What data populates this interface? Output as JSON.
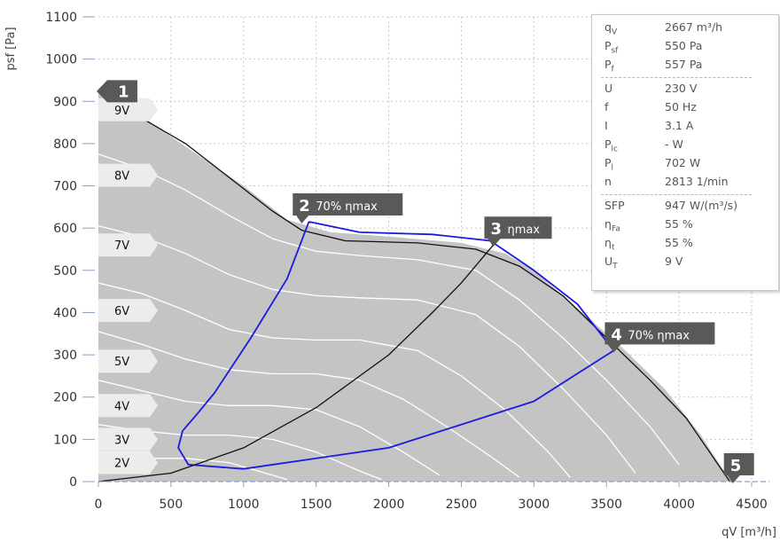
{
  "chart_data": {
    "type": "line",
    "xlabel": "qV [m³/h]",
    "ylabel": "psf [Pa]",
    "xlim": [
      0,
      4500
    ],
    "ylim": [
      0,
      1100
    ],
    "x_ticks": [
      0,
      500,
      1000,
      1500,
      2000,
      2500,
      3000,
      3500,
      4000,
      4500
    ],
    "y_ticks": [
      0,
      100,
      200,
      300,
      400,
      500,
      600,
      700,
      800,
      900,
      1000,
      1100
    ],
    "grid": true,
    "envelope": [
      [
        0,
        920
      ],
      [
        200,
        890
      ],
      [
        400,
        840
      ],
      [
        700,
        770
      ],
      [
        1000,
        700
      ],
      [
        1300,
        620
      ],
      [
        1600,
        590
      ],
      [
        2000,
        580
      ],
      [
        2500,
        565
      ],
      [
        2800,
        540
      ],
      [
        3000,
        500
      ],
      [
        3300,
        410
      ],
      [
        3600,
        320
      ],
      [
        3900,
        220
      ],
      [
        4150,
        110
      ],
      [
        4300,
        30
      ],
      [
        4400,
        0
      ],
      [
        0,
        0
      ]
    ],
    "series": [
      {
        "name": "9V",
        "color": "#111111",
        "points": [
          [
            0,
            895
          ],
          [
            300,
            860
          ],
          [
            600,
            800
          ],
          [
            900,
            720
          ],
          [
            1200,
            640
          ],
          [
            1400,
            595
          ],
          [
            1700,
            570
          ],
          [
            2200,
            565
          ],
          [
            2600,
            550
          ],
          [
            2900,
            510
          ],
          [
            3200,
            440
          ],
          [
            3500,
            340
          ],
          [
            3800,
            240
          ],
          [
            4050,
            150
          ],
          [
            4250,
            50
          ],
          [
            4350,
            0
          ]
        ]
      },
      {
        "name": "8V",
        "color": "#ffffff",
        "points": [
          [
            0,
            775
          ],
          [
            300,
            740
          ],
          [
            600,
            690
          ],
          [
            900,
            630
          ],
          [
            1200,
            575
          ],
          [
            1500,
            545
          ],
          [
            1800,
            535
          ],
          [
            2200,
            525
          ],
          [
            2600,
            500
          ],
          [
            2900,
            430
          ],
          [
            3200,
            340
          ],
          [
            3500,
            240
          ],
          [
            3800,
            130
          ],
          [
            4000,
            40
          ]
        ]
      },
      {
        "name": "7V",
        "color": "#ffffff",
        "points": [
          [
            0,
            605
          ],
          [
            300,
            580
          ],
          [
            600,
            540
          ],
          [
            900,
            490
          ],
          [
            1200,
            455
          ],
          [
            1500,
            440
          ],
          [
            1800,
            435
          ],
          [
            2200,
            430
          ],
          [
            2600,
            395
          ],
          [
            2900,
            320
          ],
          [
            3200,
            220
          ],
          [
            3500,
            110
          ],
          [
            3700,
            20
          ]
        ]
      },
      {
        "name": "6V",
        "color": "#ffffff",
        "points": [
          [
            0,
            470
          ],
          [
            300,
            445
          ],
          [
            600,
            405
          ],
          [
            900,
            360
          ],
          [
            1200,
            340
          ],
          [
            1500,
            335
          ],
          [
            1800,
            335
          ],
          [
            2200,
            310
          ],
          [
            2500,
            250
          ],
          [
            2800,
            170
          ],
          [
            3100,
            70
          ],
          [
            3250,
            10
          ]
        ]
      },
      {
        "name": "5V",
        "color": "#ffffff",
        "points": [
          [
            0,
            355
          ],
          [
            300,
            325
          ],
          [
            600,
            290
          ],
          [
            900,
            265
          ],
          [
            1200,
            255
          ],
          [
            1500,
            255
          ],
          [
            1800,
            240
          ],
          [
            2100,
            195
          ],
          [
            2400,
            130
          ],
          [
            2700,
            60
          ],
          [
            2900,
            10
          ]
        ]
      },
      {
        "name": "4V",
        "color": "#ffffff",
        "points": [
          [
            0,
            240
          ],
          [
            300,
            215
          ],
          [
            600,
            190
          ],
          [
            900,
            180
          ],
          [
            1200,
            180
          ],
          [
            1500,
            170
          ],
          [
            1800,
            130
          ],
          [
            2100,
            70
          ],
          [
            2350,
            15
          ]
        ]
      },
      {
        "name": "3V",
        "color": "#ffffff",
        "points": [
          [
            0,
            135
          ],
          [
            300,
            120
          ],
          [
            600,
            110
          ],
          [
            900,
            110
          ],
          [
            1200,
            100
          ],
          [
            1500,
            70
          ],
          [
            1800,
            25
          ],
          [
            1950,
            5
          ]
        ]
      },
      {
        "name": "2V",
        "color": "#ffffff",
        "points": [
          [
            0,
            60
          ],
          [
            300,
            55
          ],
          [
            600,
            55
          ],
          [
            900,
            45
          ],
          [
            1100,
            25
          ],
          [
            1300,
            5
          ]
        ]
      },
      {
        "name": "",
        "color": "#1a1ae0",
        "points": [
          [
            1450,
            615
          ],
          [
            1300,
            480
          ],
          [
            1050,
            340
          ],
          [
            800,
            210
          ],
          [
            680,
            160
          ],
          [
            580,
            120
          ],
          [
            550,
            80
          ],
          [
            620,
            40
          ],
          [
            1000,
            30
          ],
          [
            2000,
            80
          ],
          [
            3000,
            190
          ],
          [
            3550,
            310
          ],
          [
            3300,
            420
          ],
          [
            3000,
            500
          ],
          [
            2700,
            570
          ],
          [
            2300,
            585
          ],
          [
            1800,
            590
          ],
          [
            1450,
            615
          ]
        ]
      },
      {
        "name": "",
        "color": "#111111",
        "points": [
          [
            0,
            0
          ],
          [
            500,
            20
          ],
          [
            1000,
            80
          ],
          [
            1500,
            175
          ],
          [
            2000,
            300
          ],
          [
            2300,
            400
          ],
          [
            2500,
            470
          ],
          [
            2720,
            560
          ]
        ]
      }
    ],
    "markers": [
      {
        "num": "1",
        "text": "",
        "x": 0,
        "y": 925,
        "dir": "left"
      },
      {
        "num": "2",
        "text": "70% ηmax",
        "x": 1400,
        "y": 615,
        "dir": "down"
      },
      {
        "num": "3",
        "text": "ηmax",
        "x": 2720,
        "y": 560,
        "dir": "down"
      },
      {
        "num": "4",
        "text": "70% ηmax",
        "x": 3550,
        "y": 310,
        "dir": "down"
      },
      {
        "num": "5",
        "text": "",
        "x": 4370,
        "y": 0,
        "dir": "down"
      }
    ],
    "voltage_labels": [
      {
        "text": "9V",
        "y": 880
      },
      {
        "text": "8V",
        "y": 725
      },
      {
        "text": "7V",
        "y": 560
      },
      {
        "text": "6V",
        "y": 405
      },
      {
        "text": "5V",
        "y": 285
      },
      {
        "text": "4V",
        "y": 180
      },
      {
        "text": "3V",
        "y": 100
      },
      {
        "text": "2V",
        "y": 45
      }
    ]
  },
  "info_panel": {
    "rows": [
      {
        "sym": "q",
        "sub": "V",
        "val": "2667 m³/h"
      },
      {
        "sym": "P",
        "sub": "sf",
        "val": "550 Pa"
      },
      {
        "sym": "P",
        "sub": "f",
        "val": "557 Pa"
      },
      {
        "sym": "U",
        "sub": "",
        "val": "230 V"
      },
      {
        "sym": "f",
        "sub": "",
        "val": "50 Hz"
      },
      {
        "sym": "I",
        "sub": "",
        "val": "3.1 A"
      },
      {
        "sym": "P",
        "sub": "lc",
        "val": "- W"
      },
      {
        "sym": "P",
        "sub": "l",
        "val": "702 W"
      },
      {
        "sym": "n",
        "sub": "",
        "val": "2813 1/min"
      },
      {
        "sym": "SFP",
        "sub": "",
        "val": "947 W/(m³/s)"
      },
      {
        "sym": "η",
        "sub": "Fa",
        "val": "55 %"
      },
      {
        "sym": "η",
        "sub": "t",
        "val": "55 %"
      },
      {
        "sym": "U",
        "sub": "T",
        "val": "9 V"
      }
    ]
  }
}
